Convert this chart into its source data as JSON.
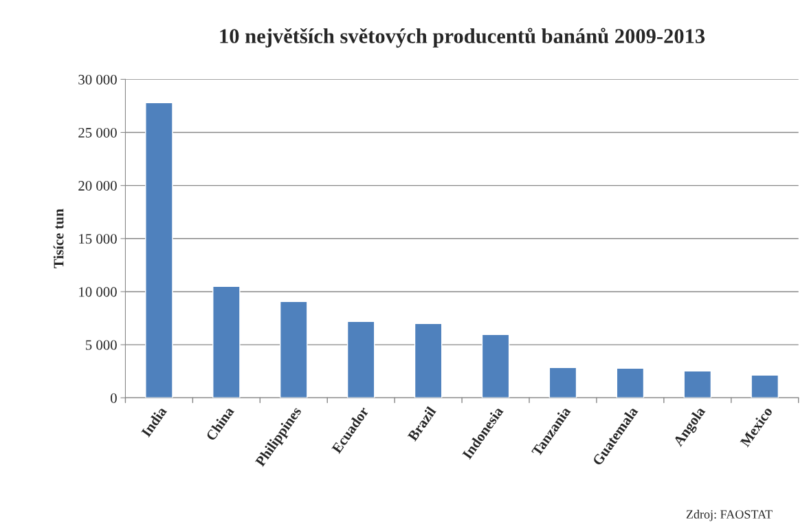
{
  "chart_data": {
    "type": "bar",
    "title": "10 největších světových producentů banánů 2009-2013",
    "ylabel": "Tisíce tun",
    "categories": [
      "India",
      "China",
      "Philippines",
      "Ecuador",
      "Brazil",
      "Indonesia",
      "Tanzania",
      "Guatemala",
      "Angola",
      "Mexico"
    ],
    "values": [
      27800,
      10500,
      9070,
      7190,
      7000,
      5960,
      2850,
      2790,
      2530,
      2140
    ],
    "color": "#4f81bd",
    "ylim": [
      0,
      30000
    ],
    "yticks": [
      {
        "value": 0,
        "label": "0"
      },
      {
        "value": 5000,
        "label": "5 000"
      },
      {
        "value": 10000,
        "label": "10 000"
      },
      {
        "value": 15000,
        "label": "15 000"
      },
      {
        "value": 20000,
        "label": "20 000"
      },
      {
        "value": 25000,
        "label": "25 000"
      },
      {
        "value": 30000,
        "label": "30 000"
      }
    ],
    "grid": "y",
    "annotations": [
      "Zdroj: FAOSTAT"
    ]
  }
}
